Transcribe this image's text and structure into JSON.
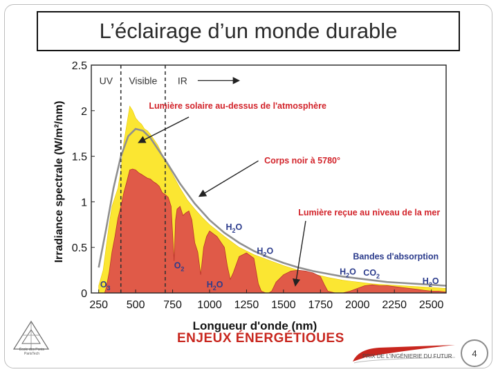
{
  "slide": {
    "title": "L’éclairage d’un monde durable",
    "footer_text": "ENJEUX ÉNERGÉTIQUES",
    "school_name": "École des Ponts ParisTech",
    "prize_label": "PRIX DE L'INGÉNIERIE DU FUTUR",
    "page_number": "4"
  },
  "colors": {
    "above_atmosphere": "#fbe632",
    "sea_level": "#e05a48",
    "blackbody": "#8f8f8f",
    "annotation_red": "#d2232a",
    "annotation_blue": "#2c3c8c"
  },
  "chart_data": {
    "type": "area",
    "title": "",
    "xlabel": "Longueur d'onde (nm)",
    "ylabel": "Irradiance spectrale (W/m²/nm)",
    "xlim": [
      200,
      2600
    ],
    "ylim": [
      0,
      2.5
    ],
    "xticks": [
      "250",
      "500",
      "750",
      "1000",
      "1250",
      "1500",
      "1750",
      "2000",
      "2250",
      "2500"
    ],
    "yticks": [
      "0",
      "0.5",
      "1",
      "1.5",
      "2",
      "2.5"
    ],
    "grid": false,
    "regions": [
      {
        "label": "UV",
        "from": 200,
        "to": 400
      },
      {
        "label": "Visible",
        "from": 400,
        "to": 700
      },
      {
        "label": "IR",
        "from": 700,
        "to": 2600
      }
    ],
    "series": [
      {
        "name": "Lumière solaire au-dessus de l'atmosphère",
        "kind": "area",
        "x": [
          250,
          280,
          300,
          320,
          340,
          360,
          380,
          400,
          420,
          440,
          460,
          480,
          500,
          520,
          540,
          560,
          580,
          600,
          650,
          700,
          750,
          800,
          850,
          900,
          950,
          1000,
          1100,
          1200,
          1300,
          1400,
          1500,
          1600,
          1700,
          1800,
          1900,
          2000,
          2100,
          2200,
          2300,
          2400,
          2500,
          2600
        ],
        "y": [
          0.08,
          0.25,
          0.5,
          0.75,
          0.95,
          1.05,
          1.15,
          1.35,
          1.65,
          1.85,
          2.05,
          2.0,
          1.92,
          1.88,
          1.85,
          1.8,
          1.78,
          1.74,
          1.62,
          1.45,
          1.3,
          1.15,
          1.02,
          0.92,
          0.83,
          0.75,
          0.62,
          0.5,
          0.42,
          0.36,
          0.3,
          0.25,
          0.21,
          0.17,
          0.14,
          0.12,
          0.1,
          0.09,
          0.08,
          0.07,
          0.06,
          0.05
        ]
      },
      {
        "name": "Corps noir à 5780°",
        "kind": "line",
        "x": [
          250,
          300,
          350,
          400,
          450,
          500,
          550,
          600,
          700,
          800,
          900,
          1000,
          1100,
          1200,
          1300,
          1400,
          1500,
          1600,
          1700,
          1800,
          1900,
          2000,
          2100,
          2200,
          2300,
          2400,
          2500,
          2600
        ],
        "y": [
          0.28,
          0.7,
          1.15,
          1.5,
          1.72,
          1.8,
          1.78,
          1.7,
          1.46,
          1.2,
          0.98,
          0.8,
          0.66,
          0.55,
          0.46,
          0.39,
          0.33,
          0.28,
          0.24,
          0.21,
          0.18,
          0.16,
          0.14,
          0.12,
          0.11,
          0.1,
          0.09,
          0.08
        ]
      },
      {
        "name": "Lumière reçue au niveau de la mer",
        "kind": "area",
        "x": [
          290,
          300,
          320,
          340,
          360,
          380,
          400,
          420,
          440,
          460,
          480,
          500,
          520,
          540,
          560,
          580,
          600,
          620,
          640,
          660,
          680,
          700,
          720,
          740,
          760,
          770,
          780,
          800,
          820,
          840,
          860,
          880,
          900,
          920,
          940,
          960,
          980,
          1000,
          1050,
          1100,
          1120,
          1140,
          1160,
          1200,
          1250,
          1300,
          1330,
          1350,
          1380,
          1400,
          1420,
          1450,
          1500,
          1550,
          1600,
          1650,
          1700,
          1750,
          1780,
          1800,
          1850,
          1900,
          1950,
          2000,
          2050,
          2100,
          2150,
          2200,
          2250,
          2300,
          2350,
          2400,
          2450,
          2500,
          2550,
          2600
        ],
        "y": [
          0.0,
          0.05,
          0.22,
          0.45,
          0.62,
          0.82,
          0.95,
          1.1,
          1.22,
          1.35,
          1.36,
          1.35,
          1.32,
          1.3,
          1.28,
          1.26,
          1.25,
          1.22,
          1.2,
          1.17,
          1.1,
          1.08,
          1.05,
          0.95,
          0.35,
          0.8,
          0.92,
          0.95,
          0.85,
          0.88,
          0.9,
          0.8,
          0.55,
          0.45,
          0.2,
          0.5,
          0.62,
          0.68,
          0.62,
          0.5,
          0.3,
          0.15,
          0.22,
          0.4,
          0.44,
          0.38,
          0.1,
          0.02,
          0.0,
          0.0,
          0.02,
          0.12,
          0.2,
          0.24,
          0.25,
          0.24,
          0.22,
          0.18,
          0.08,
          0.02,
          0.0,
          0.0,
          0.02,
          0.05,
          0.08,
          0.09,
          0.08,
          0.08,
          0.07,
          0.06,
          0.05,
          0.04,
          0.03,
          0.02,
          0.02,
          0.01
        ]
      }
    ],
    "annotations": [
      {
        "text": "Lumière solaire au-dessus de l'atmosphère",
        "color": "red",
        "x": 590,
        "y": 2.02
      },
      {
        "text": "Corps noir à 5780°",
        "color": "red",
        "x": 1370,
        "y": 1.42
      },
      {
        "text": "Lumière reçue au niveau de la mer",
        "color": "red",
        "x": 1600,
        "y": 0.85
      },
      {
        "text": "Bandes d'absorption",
        "color": "blue",
        "x": 1970,
        "y": 0.37
      }
    ],
    "molecule_labels": [
      {
        "base": "O",
        "sub": "3",
        "x": 260,
        "y": 0.06
      },
      {
        "base": "O",
        "sub": "2",
        "x": 760,
        "y": 0.27
      },
      {
        "base": "H",
        "sub": "2",
        "tail": "O",
        "x": 1110,
        "y": 0.69
      },
      {
        "base": "H",
        "sub": "2",
        "tail": "O",
        "x": 1320,
        "y": 0.43
      },
      {
        "base": "H",
        "sub": "2",
        "tail": "O",
        "x": 980,
        "y": 0.06
      },
      {
        "base": "H",
        "sub": "2",
        "tail": "O",
        "x": 1880,
        "y": 0.2
      },
      {
        "base": "CO",
        "sub": "2",
        "x": 2040,
        "y": 0.19
      },
      {
        "base": "H",
        "sub": "2",
        "tail": "O",
        "x": 2440,
        "y": 0.1
      }
    ],
    "region_arrow": {
      "from": 920,
      "to": 1200,
      "y": 2.33
    }
  }
}
